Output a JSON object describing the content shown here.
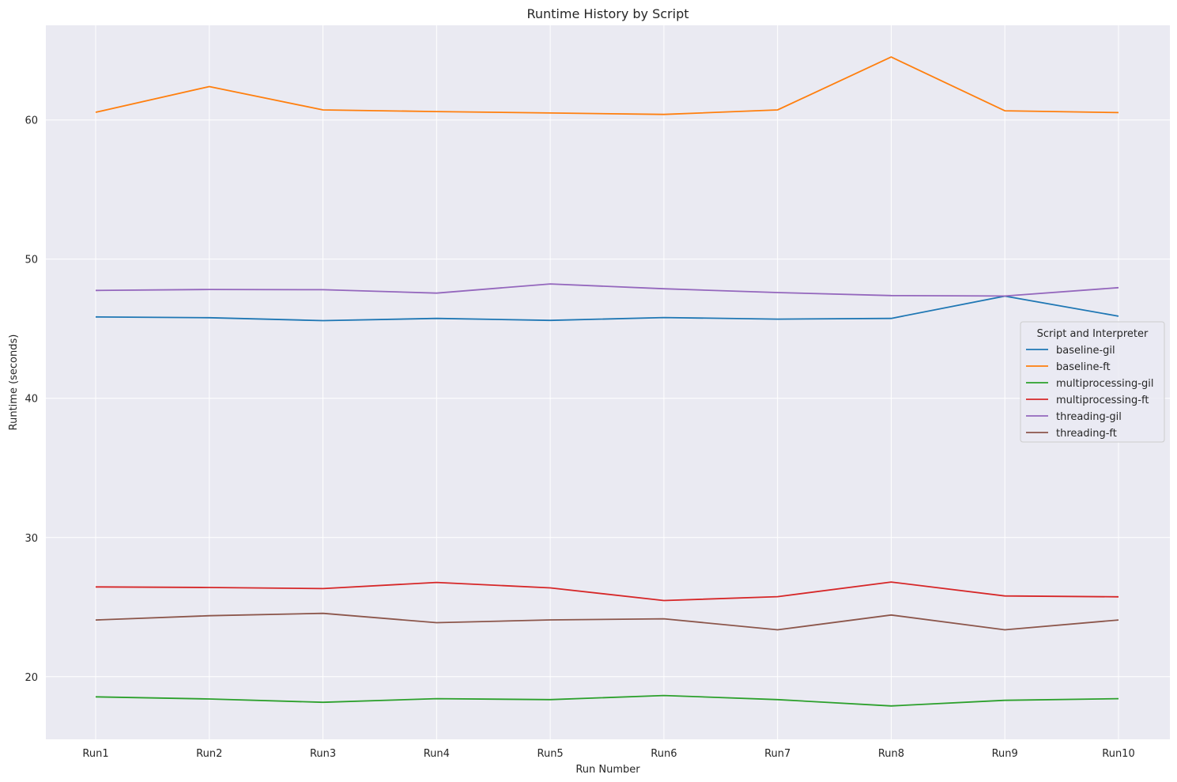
{
  "chart_data": {
    "type": "line",
    "title": "Runtime History by Script",
    "xlabel": "Run Number",
    "ylabel": "Runtime (seconds)",
    "categories": [
      "Run1",
      "Run2",
      "Run3",
      "Run4",
      "Run5",
      "Run6",
      "Run7",
      "Run8",
      "Run9",
      "Run10"
    ],
    "ylim": [
      15.5,
      66.8
    ],
    "yticks": [
      20,
      30,
      40,
      50,
      60
    ],
    "grid": true,
    "legend": {
      "title": "Script and Interpreter",
      "placement": "right"
    },
    "series": [
      {
        "name": "baseline-gil",
        "color": "#1f77b4",
        "values": [
          45.85,
          45.79,
          45.58,
          45.74,
          45.6,
          45.8,
          45.69,
          45.74,
          47.34,
          45.9
        ]
      },
      {
        "name": "baseline-ft",
        "color": "#ff7f0e",
        "values": [
          60.55,
          62.4,
          60.72,
          60.6,
          60.5,
          60.4,
          60.72,
          64.52,
          60.66,
          60.53
        ]
      },
      {
        "name": "multiprocessing-gil",
        "color": "#2ca02c",
        "values": [
          18.55,
          18.4,
          18.16,
          18.42,
          18.35,
          18.65,
          18.35,
          17.9,
          18.3,
          18.42
        ]
      },
      {
        "name": "multiprocessing-ft",
        "color": "#d62728",
        "values": [
          26.45,
          26.41,
          26.33,
          26.77,
          26.38,
          25.47,
          25.75,
          26.8,
          25.8,
          25.74
        ]
      },
      {
        "name": "threading-gil",
        "color": "#9467bd",
        "values": [
          47.75,
          47.82,
          47.8,
          47.56,
          48.22,
          47.87,
          47.6,
          47.38,
          47.35,
          47.95
        ]
      },
      {
        "name": "threading-ft",
        "color": "#8c564b",
        "values": [
          24.07,
          24.38,
          24.55,
          23.88,
          24.08,
          24.16,
          23.37,
          24.43,
          23.37,
          24.07
        ]
      }
    ]
  }
}
